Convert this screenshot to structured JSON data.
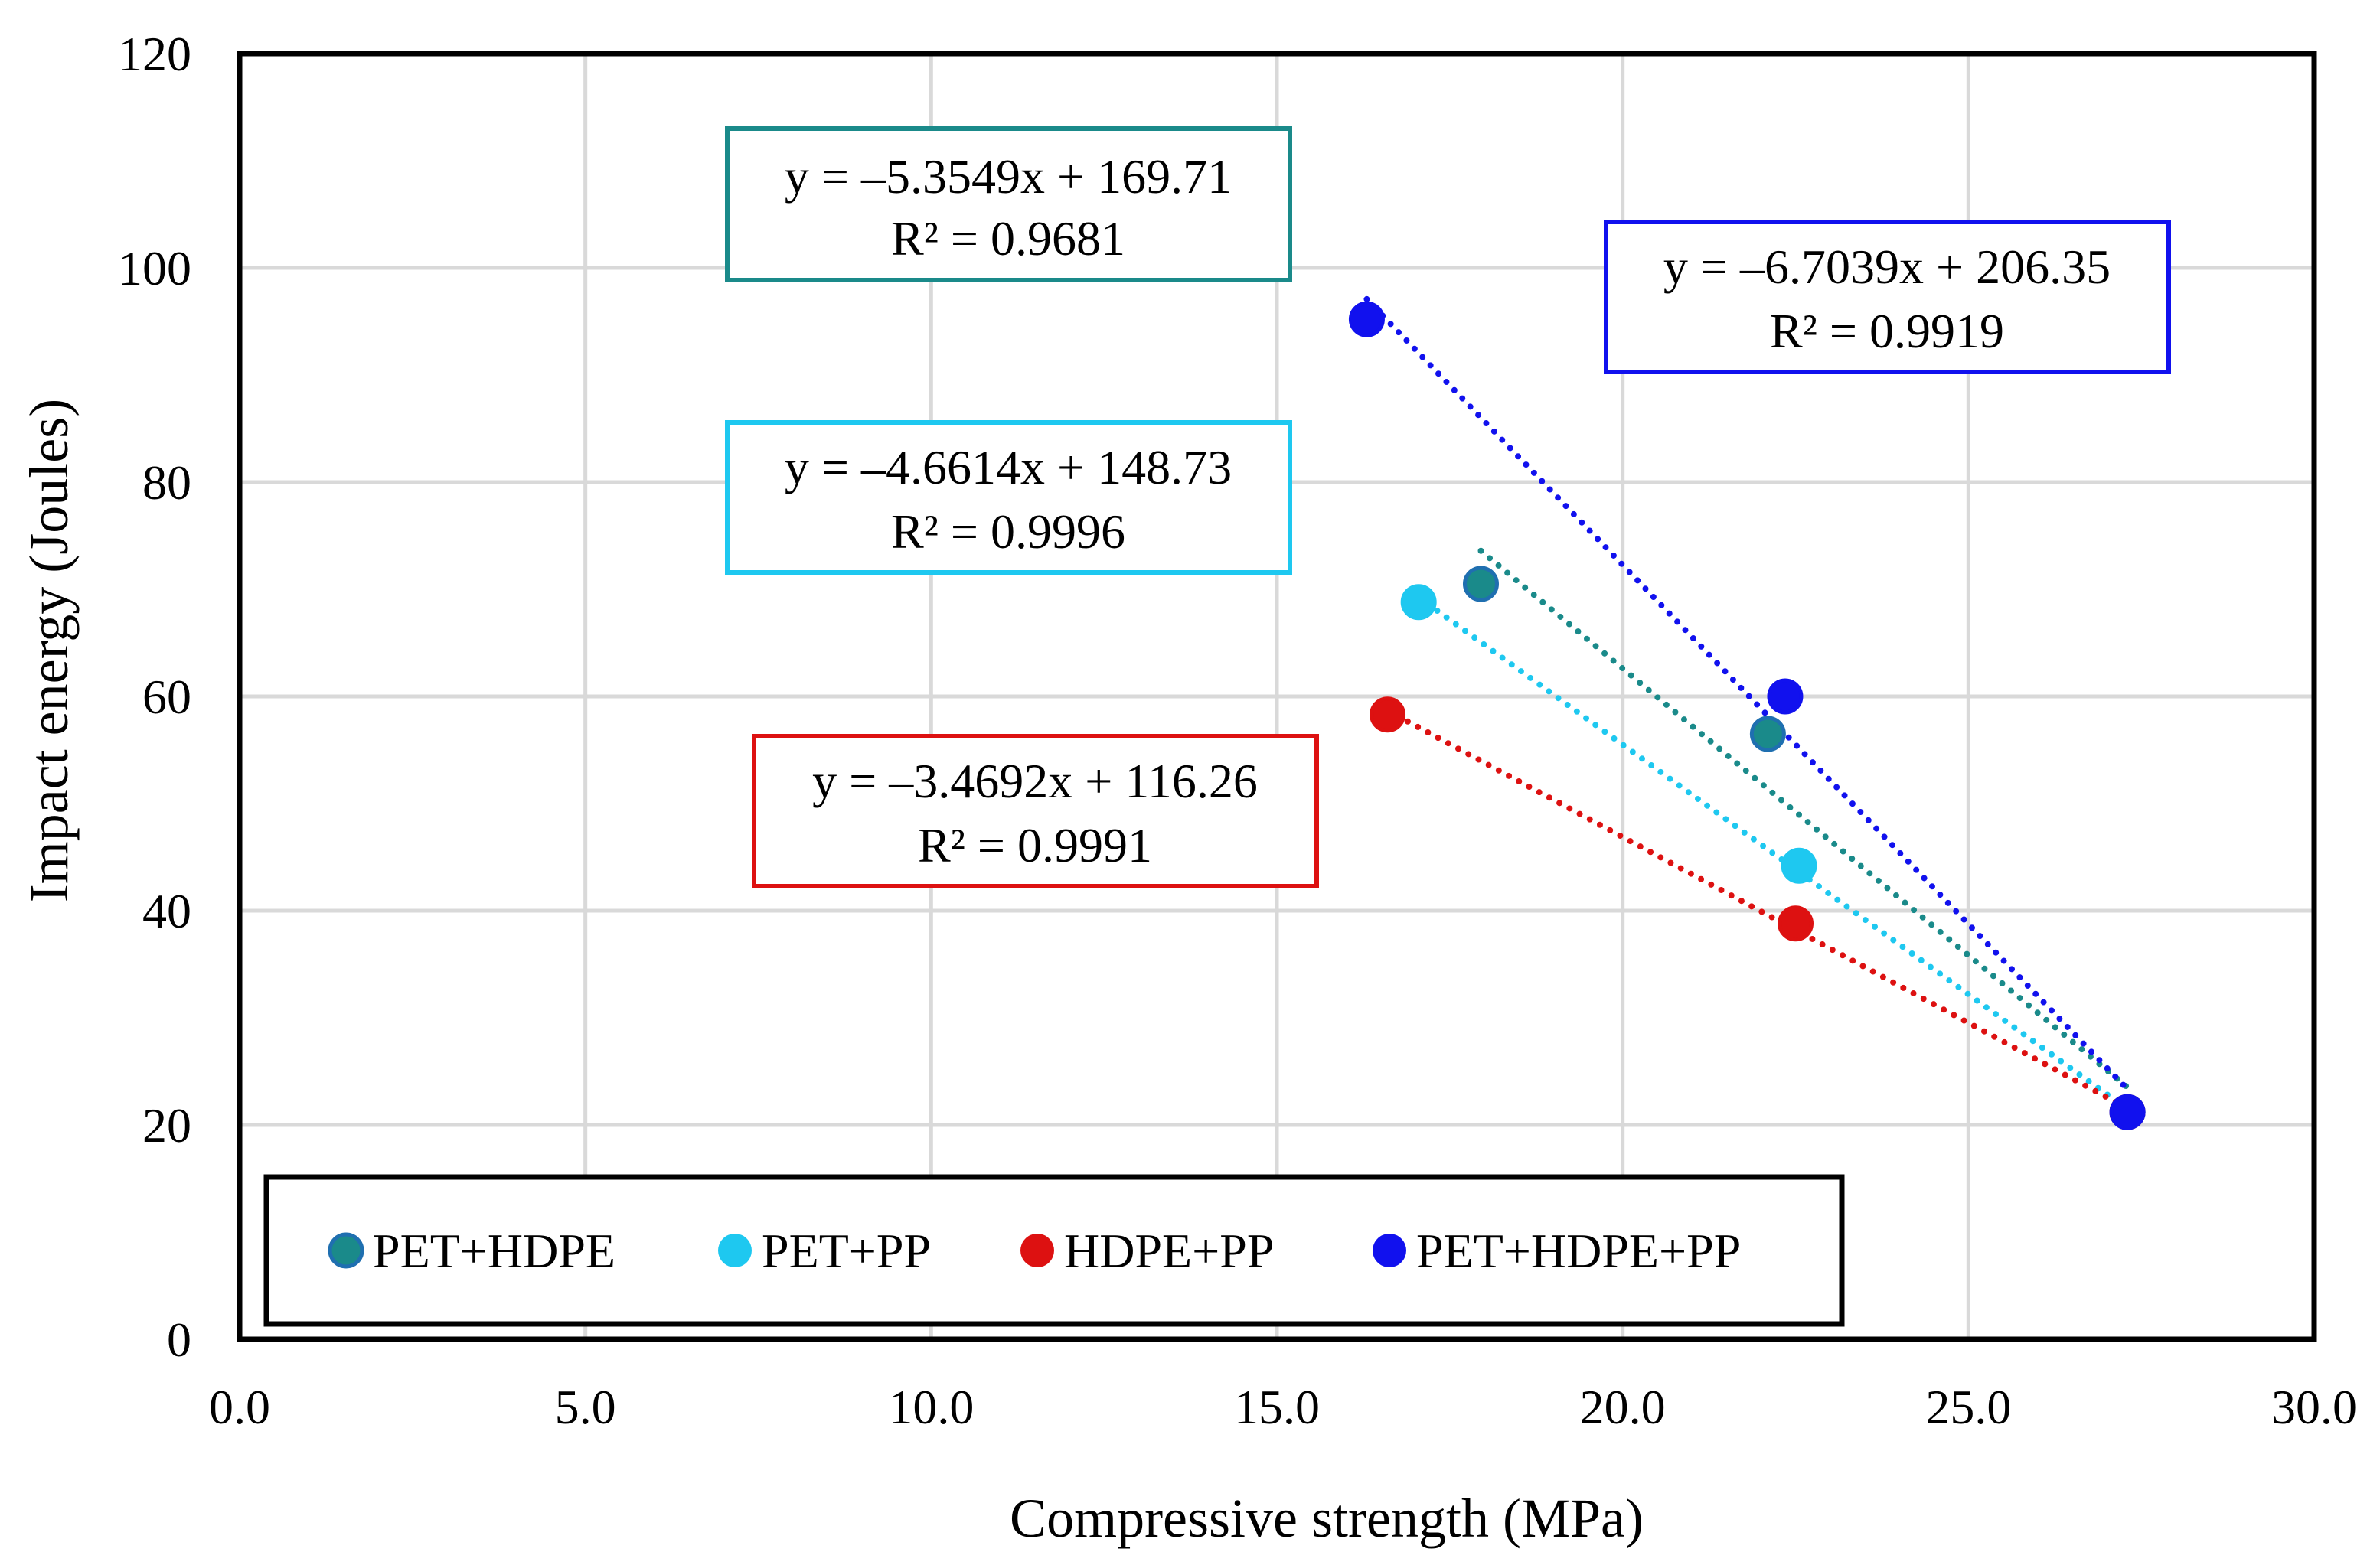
{
  "chart_data": {
    "type": "scatter",
    "title": "",
    "xlabel": "Compressive strength (MPa)",
    "ylabel": "Impact energy (Joules)",
    "xlim": [
      0,
      30
    ],
    "ylim": [
      0,
      120
    ],
    "x_ticks": [
      "0.0",
      "5.0",
      "10.0",
      "15.0",
      "20.0",
      "25.0",
      "30.0"
    ],
    "y_ticks": [
      "0",
      "20",
      "40",
      "60",
      "80",
      "100",
      "120"
    ],
    "grid": true,
    "legend_position": "bottom-left",
    "series": [
      {
        "name": "PET+HDPE",
        "color": "#1a8a8a",
        "edge_color": "#1f6fb0",
        "x": [
          17.95,
          22.1,
          27.3
        ],
        "y": [
          70.5,
          56.5,
          21.2
        ],
        "trendline": {
          "slope": -5.3549,
          "intercept": 169.71,
          "x_range": [
            17.95,
            27.3
          ]
        },
        "equation": "y = –5.3549x + 169.71",
        "r_squared": "R² = 0.9681"
      },
      {
        "name": "PET+PP",
        "color": "#1ec8f0",
        "edge_color": "#1ec8f0",
        "x": [
          17.05,
          22.55,
          27.3
        ],
        "y": [
          68.8,
          44.2,
          21.2
        ],
        "trendline": {
          "slope": -4.6614,
          "intercept": 148.73,
          "x_range": [
            17.05,
            27.3
          ]
        },
        "equation": "y = –4.6614x + 148.73",
        "r_squared": "R² = 0.9996"
      },
      {
        "name": "HDPE+PP",
        "color": "#dd1111",
        "edge_color": "#dd1111",
        "x": [
          16.6,
          22.5,
          27.3
        ],
        "y": [
          58.3,
          38.8,
          21.2
        ],
        "trendline": {
          "slope": -3.4692,
          "intercept": 116.26,
          "x_range": [
            16.6,
            27.3
          ]
        },
        "equation": "y = –3.4692x + 116.26",
        "r_squared": "R² = 0.9991"
      },
      {
        "name": "PET+HDPE+PP",
        "color": "#1111ee",
        "edge_color": "#1111ee",
        "x": [
          16.3,
          22.35,
          27.3
        ],
        "y": [
          95.2,
          60.0,
          21.2
        ],
        "trendline": {
          "slope": -6.7039,
          "intercept": 206.35,
          "x_range": [
            16.3,
            27.3
          ]
        },
        "equation": "y = –6.7039x + 206.35",
        "r_squared": "R² = 0.9919"
      }
    ]
  }
}
